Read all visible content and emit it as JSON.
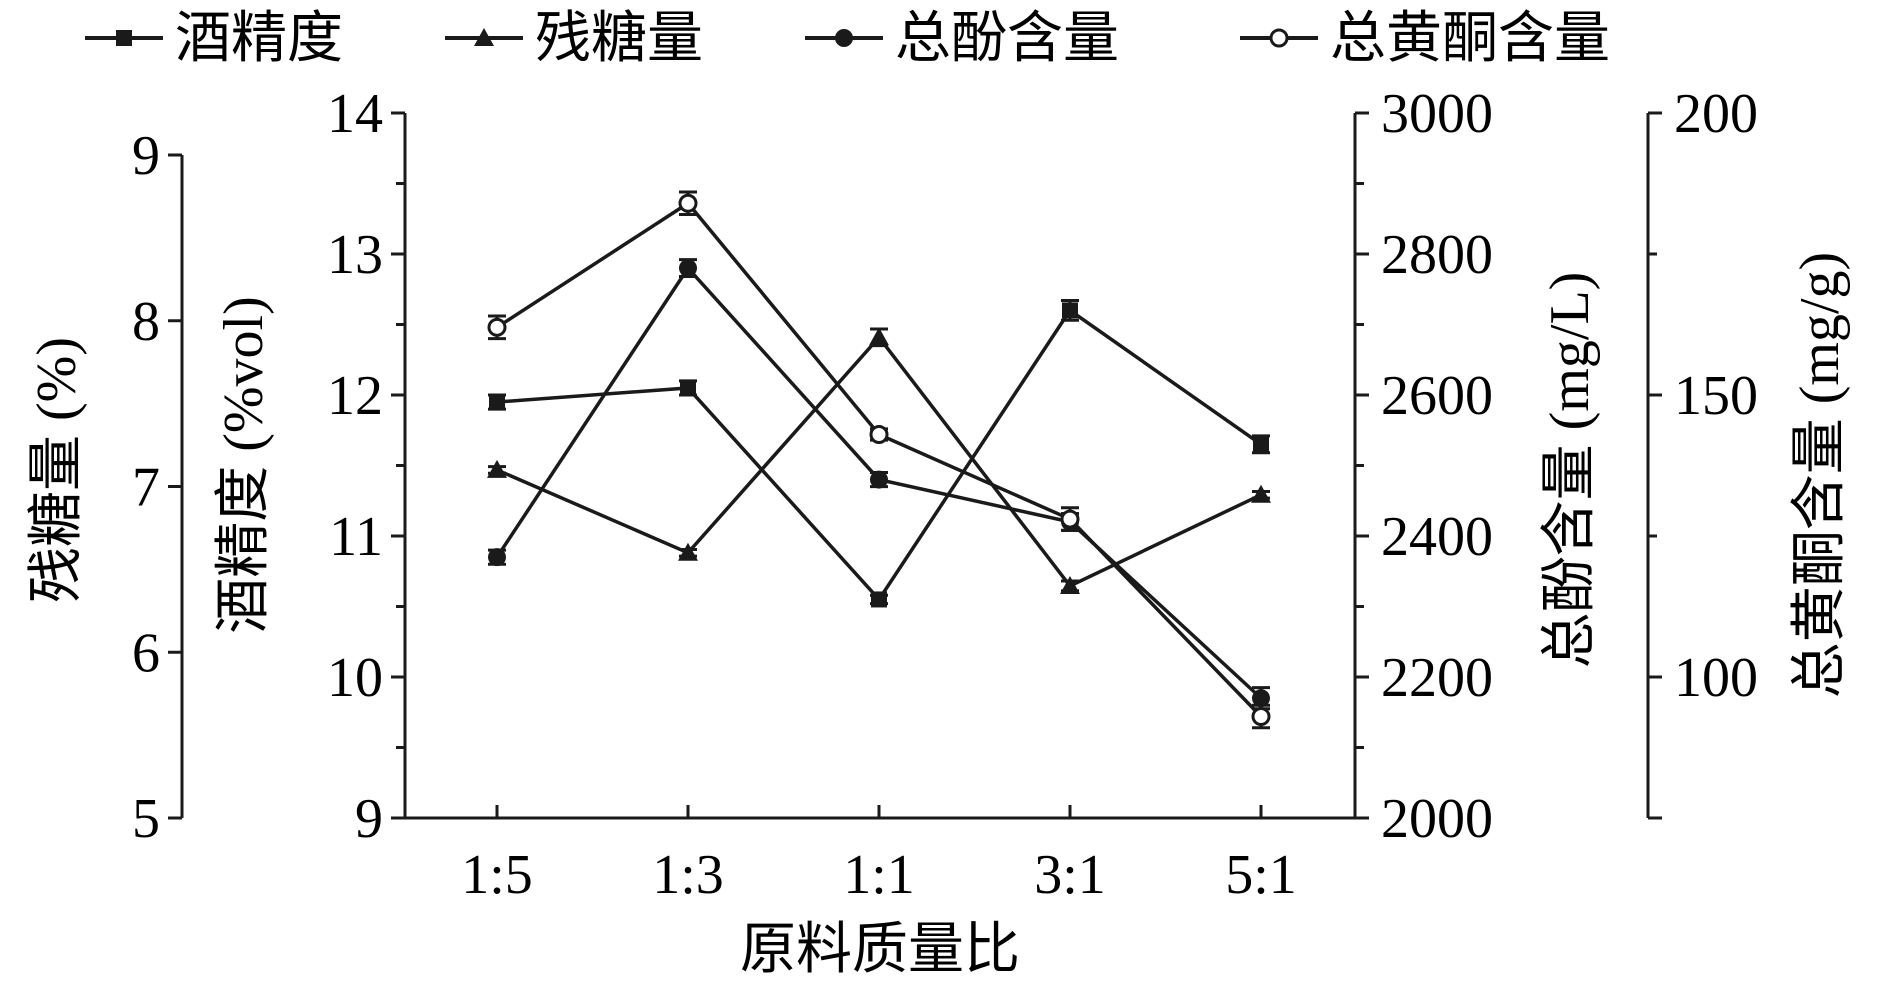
{
  "chart_data": {
    "type": "line",
    "categories": [
      "1:5",
      "1:3",
      "1:1",
      "3:1",
      "5:1"
    ],
    "xlabel": "原料质量比",
    "grid": false,
    "legend_position": "top",
    "series": [
      {
        "name": "酒精度",
        "axis": "alcohol",
        "marker": "square",
        "values": [
          11.95,
          12.05,
          10.55,
          12.6,
          11.65
        ],
        "errors": [
          0.05,
          0.05,
          0.03,
          0.07,
          0.06
        ]
      },
      {
        "name": "残糖量",
        "axis": "sugar",
        "marker": "triangle",
        "values": [
          7.1,
          6.6,
          7.9,
          6.4,
          6.95
        ],
        "errors": [
          0.02,
          0.02,
          0.05,
          0.03,
          0.02
        ]
      },
      {
        "name": "总酚含量",
        "axis": "phenol",
        "marker": "filled-circle",
        "values": [
          2370,
          2780,
          2480,
          2420,
          2170
        ],
        "errors": [
          10,
          12,
          10,
          12,
          15
        ]
      },
      {
        "name": "总黄酮含量",
        "axis": "flavonoid",
        "marker": "open-circle",
        "values": [
          162,
          184,
          143,
          128,
          93
        ],
        "errors": [
          2,
          2,
          1,
          2,
          2
        ]
      }
    ],
    "axes": {
      "sugar": {
        "label": "残糖量 (%)",
        "ylim": [
          5,
          9
        ],
        "ticks": [
          "5",
          "6",
          "7",
          "8",
          "9"
        ]
      },
      "alcohol": {
        "label": "酒精度 (%vol)",
        "ylim": [
          9,
          14
        ],
        "ticks": [
          "9",
          "10",
          "11",
          "12",
          "13",
          "14"
        ]
      },
      "phenol": {
        "label": "总酚含量 (mg/L)",
        "ylim": [
          2000,
          3000
        ],
        "ticks": [
          "2000",
          "2200",
          "2400",
          "2600",
          "2800",
          "3000"
        ]
      },
      "flavonoid": {
        "label": "总黄酮含量 (mg/g)",
        "ylim": [
          75,
          200
        ],
        "ticks": [
          "100",
          "150",
          "200"
        ]
      }
    },
    "colors": {
      "line": "#1a1a1a",
      "background": "#ffffff"
    }
  }
}
